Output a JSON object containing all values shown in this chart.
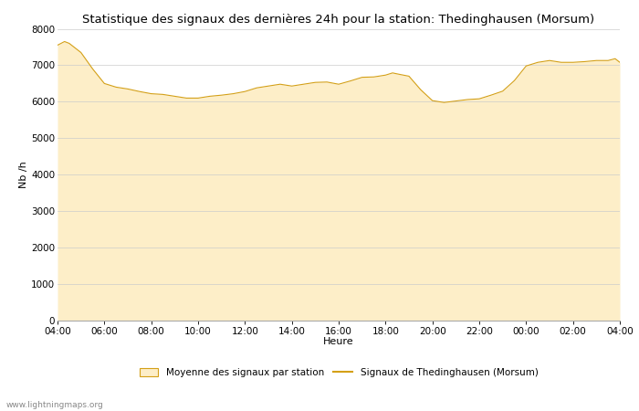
{
  "title": "Statistique des signaux des dernières 24h pour la station: Thedinghausen (Morsum)",
  "xlabel": "Heure",
  "ylabel": "Nb /h",
  "ylim": [
    0,
    8000
  ],
  "yticks": [
    0,
    1000,
    2000,
    3000,
    4000,
    5000,
    6000,
    7000,
    8000
  ],
  "xtick_labels": [
    "04:00",
    "06:00",
    "08:00",
    "10:00",
    "12:00",
    "14:00",
    "16:00",
    "18:00",
    "20:00",
    "22:00",
    "00:00",
    "02:00",
    "04:00"
  ],
  "fill_color": "#FDEEC8",
  "line_color": "#D4A017",
  "bg_color": "#ffffff",
  "grid_color": "#cccccc",
  "watermark": "www.lightningmaps.org",
  "legend_fill_label": "Moyenne des signaux par station",
  "legend_line_label": "Signaux de Thedinghausen (Morsum)",
  "hours": [
    4.0,
    4.3,
    4.5,
    5.0,
    5.5,
    6.0,
    6.5,
    7.0,
    7.5,
    8.0,
    8.5,
    9.0,
    9.5,
    10.0,
    10.5,
    11.0,
    11.5,
    12.0,
    12.5,
    13.0,
    13.5,
    14.0,
    14.5,
    15.0,
    15.5,
    16.0,
    16.5,
    17.0,
    17.5,
    18.0,
    18.3,
    18.6,
    19.0,
    19.5,
    20.0,
    20.5,
    21.0,
    21.5,
    22.0,
    22.5,
    23.0,
    23.5,
    24.0,
    24.5,
    25.0,
    25.5,
    26.0,
    26.5,
    27.0,
    27.5,
    27.8,
    28.0
  ],
  "fill_values": [
    7550,
    7650,
    7600,
    7350,
    6900,
    6500,
    6400,
    6350,
    6280,
    6220,
    6200,
    6150,
    6100,
    6100,
    6150,
    6180,
    6220,
    6280,
    6380,
    6430,
    6480,
    6430,
    6480,
    6530,
    6540,
    6480,
    6570,
    6670,
    6680,
    6730,
    6790,
    6750,
    6700,
    6330,
    6030,
    5980,
    6020,
    6060,
    6080,
    6180,
    6290,
    6580,
    6980,
    7080,
    7130,
    7080,
    7080,
    7100,
    7130,
    7130,
    7180,
    7080
  ],
  "line_values": [
    7550,
    7650,
    7600,
    7350,
    6900,
    6500,
    6400,
    6350,
    6280,
    6220,
    6200,
    6150,
    6100,
    6100,
    6150,
    6180,
    6220,
    6280,
    6380,
    6430,
    6480,
    6430,
    6480,
    6530,
    6540,
    6480,
    6570,
    6670,
    6680,
    6730,
    6790,
    6750,
    6700,
    6330,
    6030,
    5980,
    6020,
    6060,
    6080,
    6180,
    6290,
    6580,
    6980,
    7080,
    7130,
    7080,
    7080,
    7100,
    7130,
    7130,
    7180,
    7080
  ],
  "title_fontsize": 9.5,
  "tick_fontsize": 7.5,
  "label_fontsize": 8,
  "legend_fontsize": 7.5,
  "watermark_fontsize": 6.5
}
